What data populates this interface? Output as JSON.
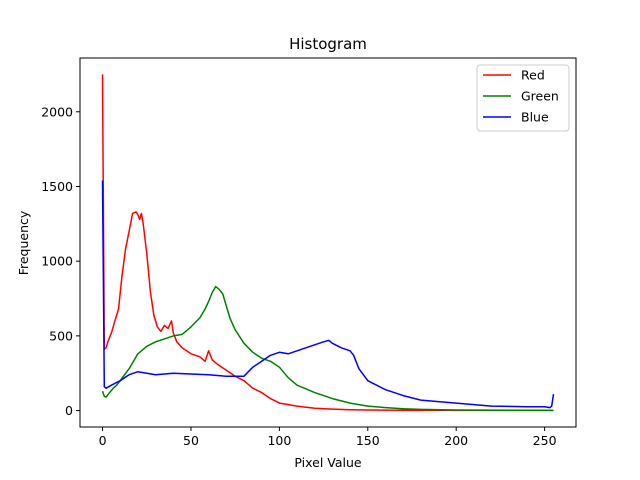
{
  "chart_data": {
    "type": "line",
    "title": "Histogram",
    "xlabel": "Pixel Value",
    "ylabel": "Frequency",
    "xlim": [
      -12.75,
      267.75
    ],
    "ylim": [
      -110,
      2360
    ],
    "xticks": [
      0,
      50,
      100,
      150,
      200,
      250
    ],
    "yticks": [
      0,
      500,
      1000,
      1500,
      2000
    ],
    "grid": false,
    "legend_position": "top-right",
    "series": [
      {
        "name": "Red",
        "color": "#ff0000",
        "x": [
          0,
          1,
          2,
          3,
          5,
          7,
          9,
          11,
          13,
          15,
          17,
          19,
          20,
          21,
          22,
          23,
          24,
          25,
          27,
          29,
          31,
          33,
          35,
          37,
          39,
          40,
          42,
          45,
          50,
          55,
          58,
          60,
          62,
          65,
          70,
          75,
          80,
          85,
          90,
          95,
          100,
          110,
          120,
          130,
          140,
          150,
          170,
          200,
          255
        ],
        "y": [
          2250,
          410,
          420,
          460,
          520,
          600,
          680,
          900,
          1080,
          1200,
          1320,
          1330,
          1310,
          1280,
          1320,
          1250,
          1150,
          1050,
          800,
          640,
          560,
          530,
          570,
          550,
          600,
          520,
          460,
          420,
          380,
          360,
          330,
          400,
          340,
          310,
          270,
          230,
          200,
          150,
          120,
          80,
          50,
          30,
          15,
          10,
          6,
          4,
          2,
          1,
          1
        ]
      },
      {
        "name": "Green",
        "color": "#008000",
        "x": [
          0,
          1,
          2,
          4,
          6,
          8,
          10,
          15,
          20,
          25,
          30,
          35,
          40,
          45,
          50,
          55,
          58,
          60,
          62,
          64,
          66,
          68,
          70,
          72,
          75,
          80,
          85,
          90,
          95,
          100,
          105,
          110,
          120,
          130,
          140,
          150,
          160,
          170,
          180,
          200,
          230,
          255
        ],
        "y": [
          130,
          95,
          90,
          120,
          150,
          170,
          200,
          280,
          380,
          430,
          460,
          480,
          500,
          510,
          560,
          620,
          680,
          730,
          790,
          830,
          810,
          780,
          700,
          620,
          540,
          450,
          390,
          350,
          330,
          290,
          220,
          170,
          120,
          80,
          50,
          30,
          20,
          12,
          8,
          4,
          2,
          1
        ]
      },
      {
        "name": "Blue",
        "color": "#0000ff",
        "x": [
          0,
          1,
          2,
          5,
          10,
          15,
          20,
          25,
          30,
          40,
          50,
          60,
          70,
          80,
          85,
          90,
          95,
          100,
          105,
          110,
          115,
          120,
          125,
          128,
          130,
          135,
          140,
          142,
          145,
          150,
          155,
          160,
          170,
          180,
          190,
          200,
          210,
          220,
          230,
          240,
          250,
          253,
          254,
          255
        ],
        "y": [
          1540,
          160,
          150,
          170,
          200,
          240,
          260,
          250,
          240,
          250,
          245,
          240,
          230,
          230,
          290,
          330,
          370,
          390,
          380,
          400,
          420,
          440,
          460,
          470,
          450,
          420,
          400,
          370,
          280,
          200,
          170,
          140,
          100,
          70,
          60,
          50,
          40,
          30,
          28,
          25,
          25,
          20,
          30,
          110
        ]
      }
    ]
  }
}
